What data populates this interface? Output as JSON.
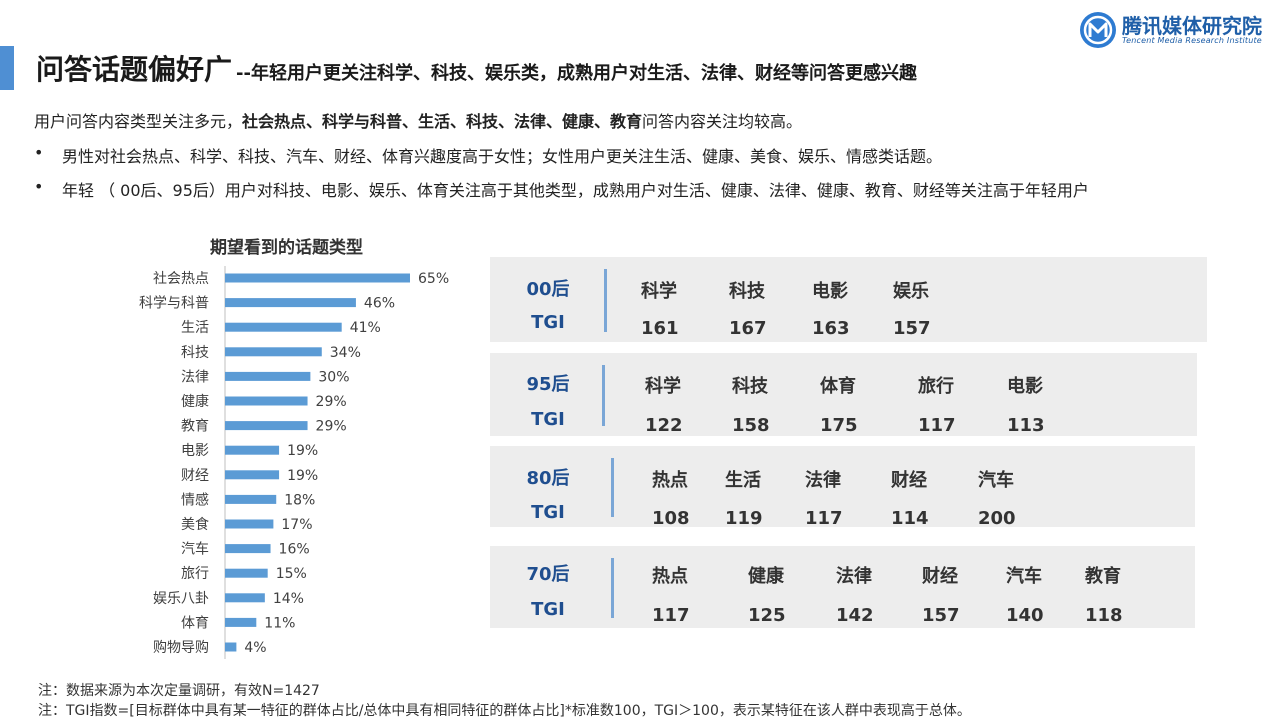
{
  "header": {
    "title_main": "问答话题偏好广",
    "title_sub": "--年轻用户更关注科学、科技、娱乐类，成熟用户对生活、法律、财经等问答更感兴趣"
  },
  "logo": {
    "cn": "腾讯媒体研究院",
    "en": "Tencent Media Research Institute"
  },
  "intro": {
    "prefix": "用户问答内容类型关注多元，",
    "bold": "社会热点、科学与科普、生活、科技、法律、健康、教育",
    "suffix": "问答内容关注均较高。"
  },
  "bullets": [
    {
      "dot": "•",
      "text": "男性对社会热点、科学、科技、汽车、财经、体育兴趣度高于女性；女性用户更关注生活、健康、美食、娱乐、情感类话题。"
    },
    {
      "dot": "•",
      "text": "年轻 （ 00后、95后）用户对科技、电影、娱乐、体育关注高于其他类型，成熟用户对生活、健康、法律、健康、教育、财经等关注高于年轻用户"
    }
  ],
  "chart_data": {
    "type": "bar",
    "orientation": "horizontal",
    "title": "期望看到的话题类型",
    "categories": [
      "社会热点",
      "科学与科普",
      "生活",
      "科技",
      "法律",
      "健康",
      "教育",
      "电影",
      "财经",
      "情感",
      "美食",
      "汽车",
      "旅行",
      "娱乐八卦",
      "体育",
      "购物导购"
    ],
    "values": [
      65,
      46,
      41,
      34,
      30,
      29,
      29,
      19,
      19,
      18,
      17,
      16,
      15,
      14,
      11,
      4
    ],
    "value_labels": [
      "65%",
      "46%",
      "41%",
      "34%",
      "30%",
      "29%",
      "29%",
      "19%",
      "19%",
      "18%",
      "17%",
      "16%",
      "15%",
      "14%",
      "11%",
      "4%"
    ],
    "unit": "%",
    "bar_color": "#5b9bd5",
    "grid": false,
    "legend": "none"
  },
  "tgi": {
    "groups": [
      {
        "age": "00后",
        "label": "TGI",
        "items": [
          {
            "cat": "科学",
            "val": "161"
          },
          {
            "cat": "科技",
            "val": "167"
          },
          {
            "cat": "电影",
            "val": "163"
          },
          {
            "cat": "娱乐",
            "val": "157"
          }
        ]
      },
      {
        "age": "95后",
        "label": "TGI",
        "items": [
          {
            "cat": "科学",
            "val": "122"
          },
          {
            "cat": "科技",
            "val": "158"
          },
          {
            "cat": "体育",
            "val": "175"
          },
          {
            "cat": "旅行",
            "val": "117"
          },
          {
            "cat": "电影",
            "val": "113"
          }
        ]
      },
      {
        "age": "80后",
        "label": "TGI",
        "items": [
          {
            "cat": "热点",
            "val": "108"
          },
          {
            "cat": "生活",
            "val": "119"
          },
          {
            "cat": "法律",
            "val": "117"
          },
          {
            "cat": "财经",
            "val": "114"
          },
          {
            "cat": "汽车",
            "val": "200"
          }
        ]
      },
      {
        "age": "70后",
        "label": "TGI",
        "items": [
          {
            "cat": "热点",
            "val": "117"
          },
          {
            "cat": "健康",
            "val": "125"
          },
          {
            "cat": "法律",
            "val": "142"
          },
          {
            "cat": "财经",
            "val": "157"
          },
          {
            "cat": "汽车",
            "val": "140"
          },
          {
            "cat": "教育",
            "val": "118"
          }
        ]
      }
    ]
  },
  "notes": [
    "注：数据来源为本次定量调研，有效N=1427",
    "注：TGI指数=[目标群体中具有某一特征的群体占比/总体中具有相同特征的群体占比]*标准数100，TGI＞100，表示某特征在该人群中表现高于总体。"
  ],
  "colors": {
    "accent": "#4f8fd3",
    "brand": "#1f5fa8",
    "bar": "#5b9bd5",
    "tgi_label": "#1f4e8f",
    "tgi_bg": "#ededed"
  }
}
